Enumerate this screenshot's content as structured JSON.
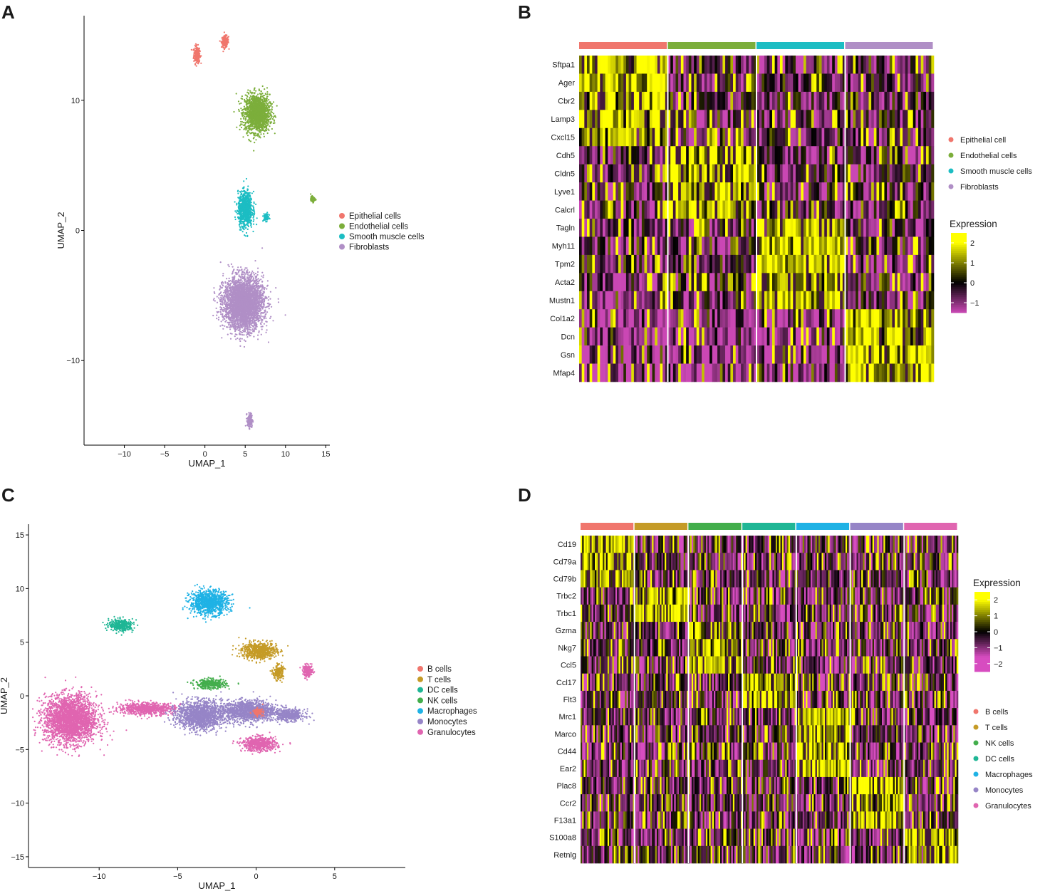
{
  "panels": {
    "a": "A",
    "b": "B",
    "c": "C",
    "d": "D"
  },
  "colors": {
    "epithelial": "#F0766D",
    "endothelial": "#7CAE3B",
    "smooth_muscle": "#1CBDC3",
    "fibroblasts": "#B08FC6",
    "b_cells": "#F0766D",
    "t_cells": "#C59B27",
    "nk_cells": "#43AE4C",
    "dc_cells": "#1FB695",
    "macrophages": "#1FB2E5",
    "monocytes": "#9685C7",
    "granulocytes": "#E065B0",
    "heat_high": "#FFFF00",
    "heat_mid": "#000000",
    "heat_low": "#D74CC0"
  },
  "chart_data": [
    {
      "id": "A",
      "type": "scatter",
      "title": "",
      "xlabel": "UMAP_1",
      "ylabel": "UMAP_2",
      "xlim": [
        -15,
        15.5
      ],
      "ylim": [
        -16.5,
        16.5
      ],
      "xticks": [
        -10,
        -5,
        0,
        5,
        10,
        15
      ],
      "xtick_labels": [
        "−10",
        "−5",
        "0",
        "5",
        "10",
        "15"
      ],
      "yticks": [
        -10,
        0,
        10
      ],
      "ytick_labels": [
        "−10",
        "0",
        "10"
      ],
      "legend_position": "right",
      "legend": [
        "Epithelial cells",
        "Endothelial cells",
        "Smooth muscle cells",
        "Fibroblasts"
      ],
      "clusters": [
        {
          "name": "Epithelial cells",
          "color_key": "epithelial",
          "center": [
            -1.0,
            13.5
          ],
          "spread": [
            0.35,
            0.6
          ]
        },
        {
          "name": "Epithelial cells",
          "color_key": "epithelial",
          "center": [
            2.5,
            14.5
          ],
          "spread": [
            0.4,
            0.4
          ]
        },
        {
          "name": "Endothelial cells",
          "color_key": "endothelial",
          "center": [
            6.5,
            9.0
          ],
          "spread": [
            1.4,
            1.3
          ]
        },
        {
          "name": "Endothelial cells",
          "color_key": "endothelial",
          "center": [
            13.4,
            2.4
          ],
          "spread": [
            0.25,
            0.2
          ]
        },
        {
          "name": "Smooth muscle cells",
          "color_key": "smooth_muscle",
          "center": [
            5.0,
            1.6
          ],
          "spread": [
            0.8,
            1.2
          ]
        },
        {
          "name": "Smooth muscle cells",
          "color_key": "smooth_muscle",
          "center": [
            7.6,
            1.0
          ],
          "spread": [
            0.3,
            0.25
          ]
        },
        {
          "name": "Fibroblasts",
          "color_key": "fibroblasts",
          "center": [
            4.8,
            -5.6
          ],
          "spread": [
            2.2,
            1.8
          ]
        },
        {
          "name": "Fibroblasts",
          "color_key": "fibroblasts",
          "center": [
            5.6,
            -14.6
          ],
          "spread": [
            0.3,
            0.5
          ]
        }
      ]
    },
    {
      "id": "B",
      "type": "heatmap",
      "legend_title": "Expression",
      "scale_ticks": [
        2,
        1,
        0,
        -1
      ],
      "scale_tick_labels": [
        "2",
        "1",
        "0",
        "−1"
      ],
      "scale_range": [
        -1.5,
        2.5
      ],
      "groups": [
        {
          "name": "Epithelial cell",
          "color_key": "epithelial"
        },
        {
          "name": "Endothelial cells",
          "color_key": "endothelial"
        },
        {
          "name": "Smooth muscle cells",
          "color_key": "smooth_muscle"
        },
        {
          "name": "Fibroblasts",
          "color_key": "fibroblasts"
        }
      ],
      "genes": [
        "Sftpa1",
        "Ager",
        "Cbr2",
        "Lamp3",
        "Cxcl15",
        "Cdh5",
        "Cldn5",
        "Lyve1",
        "Calcrl",
        "Tagln",
        "Myh11",
        "Tpm2",
        "Acta2",
        "Mustn1",
        "Col1a2",
        "Dcn",
        "Gsn",
        "Mfap4"
      ],
      "gene_marker_group": [
        0,
        0,
        0,
        0,
        0,
        1,
        1,
        1,
        1,
        2,
        2,
        2,
        2,
        2,
        3,
        3,
        3,
        3
      ]
    },
    {
      "id": "C",
      "type": "scatter",
      "title": "",
      "xlabel": "UMAP_1",
      "ylabel": "UMAP_2",
      "xlim": [
        -14.5,
        9.5
      ],
      "ylim": [
        -16,
        16
      ],
      "xticks": [
        -10,
        -5,
        0,
        5
      ],
      "xtick_labels": [
        "−10",
        "−5",
        "0",
        "5"
      ],
      "yticks": [
        15,
        10,
        5,
        0,
        -5,
        -10,
        -15
      ],
      "ytick_labels": [
        "15",
        "10",
        "5",
        "0",
        "−5",
        "−10",
        "−15"
      ],
      "legend_position": "right",
      "legend": [
        "B cells",
        "T cells",
        "DC cells",
        "NK cells",
        "Macrophages",
        "Monocytes",
        "Granulocytes"
      ],
      "clusters": [
        {
          "name": "Granulocytes",
          "color_key": "granulocytes",
          "center": [
            -11.8,
            -2.2
          ],
          "spread": [
            1.5,
            2.0
          ]
        },
        {
          "name": "Granulocytes",
          "color_key": "granulocytes",
          "center": [
            -7.0,
            -1.2
          ],
          "spread": [
            1.6,
            0.5
          ]
        },
        {
          "name": "Granulocytes",
          "color_key": "granulocytes",
          "center": [
            0.2,
            -4.5
          ],
          "spread": [
            1.0,
            0.6
          ]
        },
        {
          "name": "Granulocytes",
          "color_key": "granulocytes",
          "center": [
            3.3,
            2.3
          ],
          "spread": [
            0.3,
            0.5
          ]
        },
        {
          "name": "Monocytes",
          "color_key": "monocytes",
          "center": [
            -3.6,
            -1.8
          ],
          "spread": [
            1.3,
            1.2
          ]
        },
        {
          "name": "Monocytes",
          "color_key": "monocytes",
          "center": [
            -0.5,
            -1.4
          ],
          "spread": [
            1.6,
            0.9
          ]
        },
        {
          "name": "Monocytes",
          "color_key": "monocytes",
          "center": [
            2.1,
            -1.8
          ],
          "spread": [
            0.9,
            0.5
          ]
        },
        {
          "name": "Macrophages",
          "color_key": "macrophages",
          "center": [
            -3.0,
            8.7
          ],
          "spread": [
            1.1,
            1.0
          ]
        },
        {
          "name": "DC cells",
          "color_key": "dc_cells",
          "center": [
            -8.6,
            6.6
          ],
          "spread": [
            0.7,
            0.5
          ]
        },
        {
          "name": "NK cells",
          "color_key": "nk_cells",
          "center": [
            -2.9,
            1.1
          ],
          "spread": [
            0.9,
            0.4
          ]
        },
        {
          "name": "T cells",
          "color_key": "t_cells",
          "center": [
            0.2,
            4.2
          ],
          "spread": [
            1.0,
            0.7
          ]
        },
        {
          "name": "T cells",
          "color_key": "t_cells",
          "center": [
            1.4,
            2.2
          ],
          "spread": [
            0.3,
            0.6
          ]
        },
        {
          "name": "B cells",
          "color_key": "b_cells",
          "center": [
            0.1,
            -1.5
          ],
          "spread": [
            0.3,
            0.3
          ]
        }
      ]
    },
    {
      "id": "D",
      "type": "heatmap",
      "legend_title": "Expression",
      "scale_ticks": [
        2,
        1,
        0,
        -1,
        -2
      ],
      "scale_tick_labels": [
        "2",
        "1",
        "0",
        "−1",
        "−2"
      ],
      "scale_range": [
        -2.5,
        2.5
      ],
      "groups": [
        {
          "name": "B cells",
          "color_key": "b_cells"
        },
        {
          "name": "T cells",
          "color_key": "t_cells"
        },
        {
          "name": "NK cells",
          "color_key": "nk_cells"
        },
        {
          "name": "DC cells",
          "color_key": "dc_cells"
        },
        {
          "name": "Macrophages",
          "color_key": "macrophages"
        },
        {
          "name": "Monocytes",
          "color_key": "monocytes"
        },
        {
          "name": "Granulocytes",
          "color_key": "granulocytes"
        }
      ],
      "genes": [
        "Cd19",
        "Cd79a",
        "Cd79b",
        "Trbc2",
        "Trbc1",
        "Gzma",
        "Nkg7",
        "Ccl5",
        "Ccl17",
        "Flt3",
        "Mrc1",
        "Marco",
        "Cd44",
        "Ear2",
        "Plac8",
        "Ccr2",
        "F13a1",
        "S100a8",
        "Retnlg"
      ],
      "gene_marker_group": [
        0,
        0,
        0,
        1,
        1,
        2,
        2,
        2,
        3,
        3,
        4,
        4,
        4,
        4,
        5,
        5,
        5,
        6,
        6
      ]
    }
  ]
}
